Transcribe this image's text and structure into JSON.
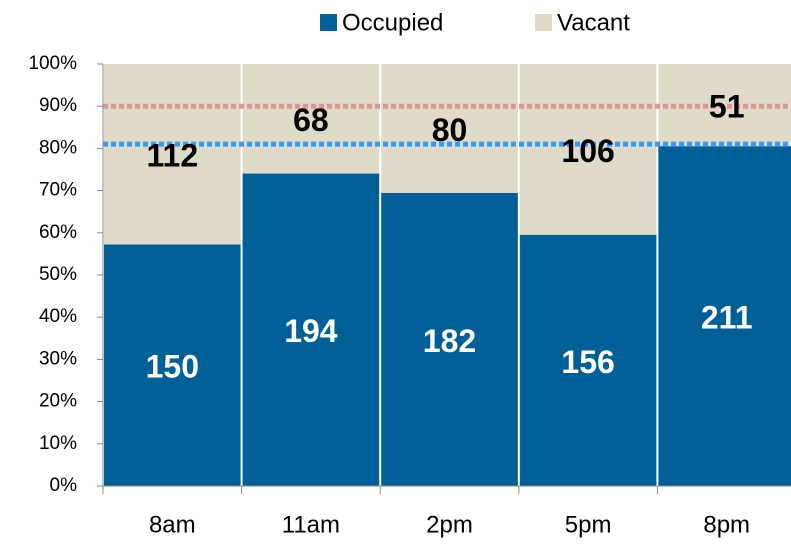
{
  "chart_data": {
    "type": "percent_stacked_bar",
    "categories": [
      "8am",
      "11am",
      "2pm",
      "5pm",
      "8pm"
    ],
    "series": [
      {
        "name": "Occupied",
        "color": "#005f96",
        "label_color": "#ffffff",
        "values": [
          150,
          194,
          182,
          156,
          211
        ]
      },
      {
        "name": "Vacant",
        "color": "#e0dbc9",
        "label_color": "#000000",
        "values": [
          112,
          68,
          80,
          106,
          51
        ]
      }
    ],
    "ylim": [
      0,
      100
    ],
    "yticks": [
      {
        "value": 0,
        "label": "0%"
      },
      {
        "value": 10,
        "label": "10%"
      },
      {
        "value": 20,
        "label": "20%"
      },
      {
        "value": 30,
        "label": "30%"
      },
      {
        "value": 40,
        "label": "40%"
      },
      {
        "value": 50,
        "label": "50%"
      },
      {
        "value": 60,
        "label": "60%"
      },
      {
        "value": 70,
        "label": "70%"
      },
      {
        "value": 80,
        "label": "80%"
      },
      {
        "value": 90,
        "label": "90%"
      },
      {
        "value": 100,
        "label": "100%"
      }
    ],
    "reference_lines": [
      {
        "value": 90,
        "color": "#d99694"
      },
      {
        "value": 81,
        "color": "#3399ff"
      }
    ],
    "legend": "top"
  }
}
